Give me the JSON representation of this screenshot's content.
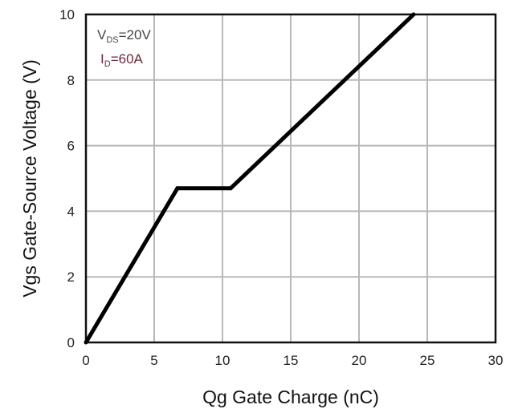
{
  "chart_data": {
    "type": "line",
    "title": "",
    "xlabel": "Qg Gate Charge (nC)",
    "ylabel": "Vgs Gate-Source Voltage (V)",
    "xlim": [
      0,
      30
    ],
    "ylim": [
      0,
      10
    ],
    "x_ticks": [
      "0",
      "5",
      "10",
      "15",
      "20",
      "25",
      "30"
    ],
    "y_ticks": [
      "0",
      "2",
      "4",
      "6",
      "8",
      "10"
    ],
    "grid": true,
    "series": [
      {
        "x": [
          0,
          6.7,
          10.6,
          24.0
        ],
        "y": [
          0,
          4.7,
          4.7,
          10.0
        ],
        "color": "#000000"
      }
    ],
    "annotations": [
      {
        "base": "V",
        "sub": "DS",
        "value": "=20V",
        "color": "#444444"
      },
      {
        "base": "I",
        "sub": "D",
        "value": "=60A",
        "color": "#6b2a3a"
      }
    ]
  }
}
